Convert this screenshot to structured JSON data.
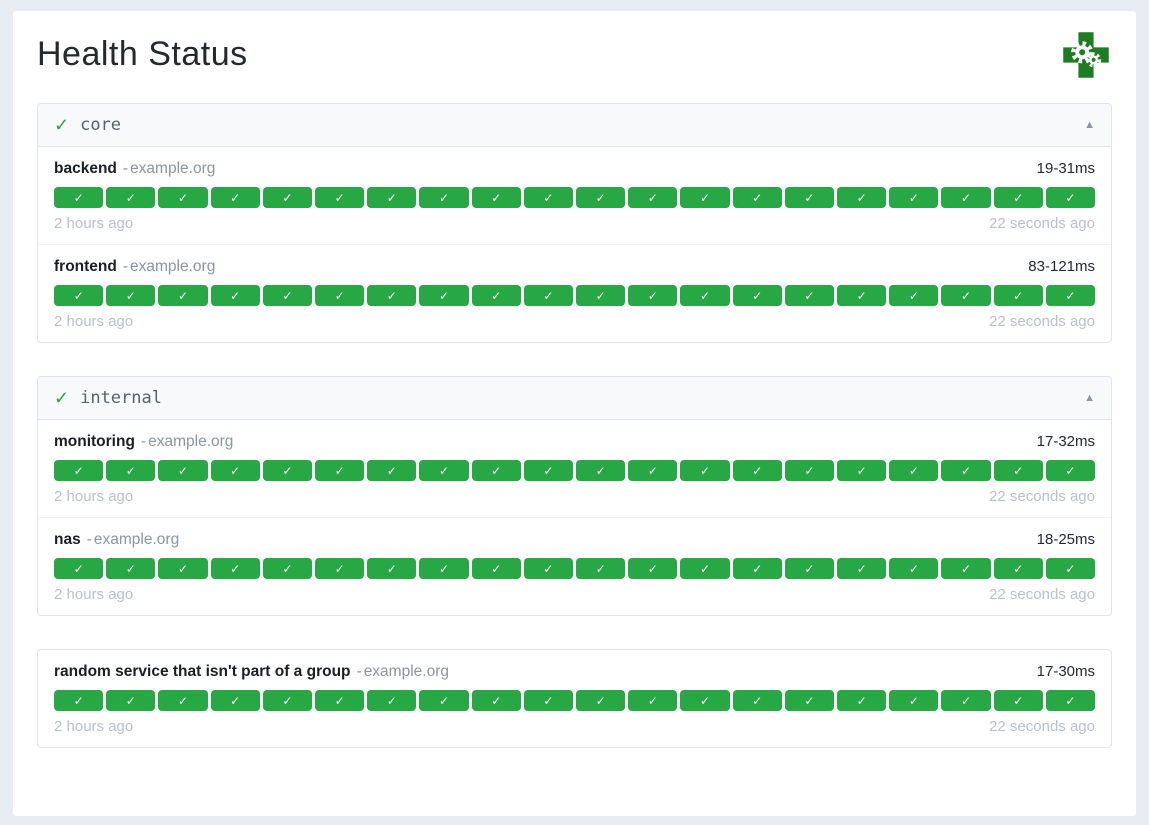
{
  "page": {
    "title": "Health Status"
  },
  "logo": {
    "description": "green cross with gears"
  },
  "colors": {
    "badge_green": "#28a745",
    "logo_green": "#1c7d22",
    "page_background": "#e7ecf2"
  },
  "badge_check": "✓",
  "results_per_endpoint": 20,
  "groups": [
    {
      "status_icon": "✓",
      "name": "core",
      "collapse_icon": "▲",
      "endpoints": [
        {
          "name": "backend",
          "separator": "-",
          "host": "example.org",
          "latency": "19-31ms",
          "oldest_result_age": "2 hours ago",
          "newest_result_age": "22 seconds ago"
        },
        {
          "name": "frontend",
          "separator": "-",
          "host": "example.org",
          "latency": "83-121ms",
          "oldest_result_age": "2 hours ago",
          "newest_result_age": "22 seconds ago"
        }
      ]
    },
    {
      "status_icon": "✓",
      "name": "internal",
      "collapse_icon": "▲",
      "endpoints": [
        {
          "name": "monitoring",
          "separator": "-",
          "host": "example.org",
          "latency": "17-32ms",
          "oldest_result_age": "2 hours ago",
          "newest_result_age": "22 seconds ago"
        },
        {
          "name": "nas",
          "separator": "-",
          "host": "example.org",
          "latency": "18-25ms",
          "oldest_result_age": "2 hours ago",
          "newest_result_age": "22 seconds ago"
        }
      ]
    },
    {
      "status_icon": "",
      "name": "",
      "collapse_icon": "",
      "endpoints": [
        {
          "name": "random service that isn't part of a group",
          "separator": "-",
          "host": "example.org",
          "latency": "17-30ms",
          "oldest_result_age": "2 hours ago",
          "newest_result_age": "22 seconds ago"
        }
      ]
    }
  ]
}
